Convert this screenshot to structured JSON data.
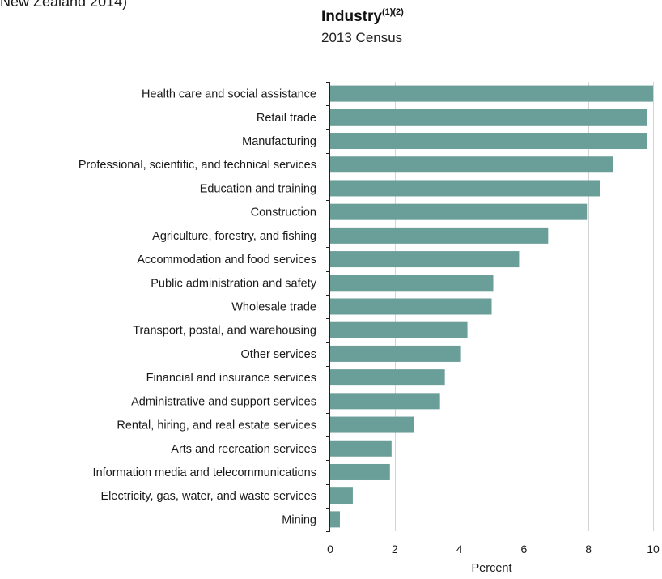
{
  "header": {
    "source_fragment": "New Zealand 2014)"
  },
  "chart_data": {
    "type": "bar",
    "orientation": "horizontal",
    "title": "Industry",
    "title_superscript": "(1)(2)",
    "subtitle": "2013 Census",
    "xlabel": "Percent",
    "ylabel": "",
    "xlim": [
      0,
      10
    ],
    "xticks": [
      0,
      2,
      4,
      6,
      8,
      10
    ],
    "grid": true,
    "bar_color": "#6a9e99",
    "categories": [
      "Health care and social assistance",
      "Retail trade",
      "Manufacturing",
      "Professional, scientific, and technical services",
      "Education and training",
      "Construction",
      "Agriculture, forestry, and fishing",
      "Accommodation and food services",
      "Public administration and safety",
      "Wholesale trade",
      "Transport, postal, and warehousing",
      "Other services",
      "Financial and insurance services",
      "Administrative and support services",
      "Rental, hiring, and real estate services",
      "Arts and recreation services",
      "Information media and telecommunications",
      "Electricity, gas, water, and waste services",
      "Mining"
    ],
    "values": [
      10.0,
      9.8,
      9.8,
      8.75,
      8.35,
      7.95,
      6.75,
      5.85,
      5.05,
      5.0,
      4.25,
      4.05,
      3.55,
      3.4,
      2.6,
      1.9,
      1.85,
      0.7,
      0.3
    ]
  }
}
